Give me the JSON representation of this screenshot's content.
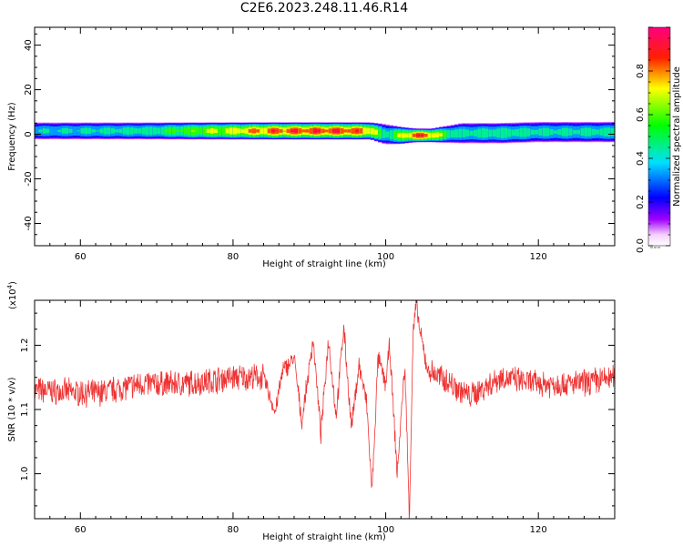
{
  "title": "C2E6.2023.248.11.46.R14",
  "chart_data": [
    {
      "type": "heatmap",
      "xlabel": "Height of straight line (km)",
      "ylabel": "Frequency (Hz)",
      "xlim": [
        54,
        130
      ],
      "ylim": [
        -50,
        48
      ],
      "xticks": [
        60,
        80,
        100,
        120
      ],
      "yticks": [
        -40,
        -20,
        0,
        20,
        40
      ],
      "colorbar": {
        "label": "Normalized spectral amplitude",
        "ticks": [
          "0.0",
          "0.2",
          "0.4",
          "0.6",
          "0.8"
        ],
        "range": [
          0,
          1
        ]
      },
      "band": {
        "x": [
          54,
          60,
          65,
          70,
          75,
          80,
          85,
          90,
          95,
          98,
          100,
          102,
          104,
          106,
          108,
          110,
          115,
          120,
          125,
          130
        ],
        "center_hz": [
          1.5,
          1.5,
          1.5,
          1.5,
          1.5,
          1.5,
          1.5,
          1.5,
          1.5,
          1.5,
          0,
          -0.5,
          -0.5,
          -0.5,
          0,
          0.5,
          0.5,
          1,
          1,
          1
        ],
        "peak_amplitude": [
          0.45,
          0.48,
          0.5,
          0.55,
          0.7,
          0.8,
          0.92,
          0.95,
          0.95,
          0.88,
          0.5,
          0.75,
          0.95,
          0.9,
          0.6,
          0.5,
          0.55,
          0.5,
          0.5,
          0.52
        ],
        "width_hz": [
          2.5,
          2.5,
          2.5,
          2.5,
          2.5,
          2.5,
          2.5,
          2.5,
          2.5,
          2.5,
          3,
          2.5,
          2,
          2,
          2.5,
          3,
          3,
          3,
          3,
          3
        ]
      }
    },
    {
      "type": "line",
      "xlabel": "Height of straight line (km)",
      "ylabel": "SNR (10 * v/v)",
      "scale_label": "(x10",
      "scale_exp": "4",
      "scale_close": ")",
      "xlim": [
        54,
        130
      ],
      "ylim": [
        0.93,
        1.27
      ],
      "xticks": [
        60,
        80,
        100,
        120
      ],
      "yticks": [
        "1.0",
        "1.1",
        "1.2"
      ],
      "ytick_values": [
        1.0,
        1.1,
        1.2
      ],
      "color": "#ee3333",
      "features": [
        [
          54,
          1.13
        ],
        [
          62,
          1.125
        ],
        [
          68,
          1.14
        ],
        [
          74,
          1.14
        ],
        [
          80,
          1.15
        ],
        [
          84,
          1.15
        ],
        [
          85.5,
          1.095
        ],
        [
          86.5,
          1.16
        ],
        [
          88,
          1.18
        ],
        [
          89,
          1.08
        ],
        [
          90.5,
          1.21
        ],
        [
          91.5,
          1.06
        ],
        [
          92.5,
          1.21
        ],
        [
          93.5,
          1.09
        ],
        [
          94.5,
          1.23
        ],
        [
          95.5,
          1.07
        ],
        [
          96.5,
          1.17
        ],
        [
          97.5,
          1.11
        ],
        [
          98.2,
          0.97
        ],
        [
          99,
          1.18
        ],
        [
          100,
          1.14
        ],
        [
          100.5,
          1.2
        ],
        [
          101.5,
          1.0
        ],
        [
          102.5,
          1.17
        ],
        [
          103.1,
          0.935
        ],
        [
          103.6,
          1.22
        ],
        [
          104,
          1.265
        ],
        [
          104.5,
          1.22
        ],
        [
          105.5,
          1.16
        ],
        [
          108,
          1.145
        ],
        [
          111,
          1.12
        ],
        [
          115,
          1.15
        ],
        [
          120,
          1.14
        ],
        [
          125,
          1.14
        ],
        [
          130,
          1.15
        ]
      ]
    }
  ]
}
